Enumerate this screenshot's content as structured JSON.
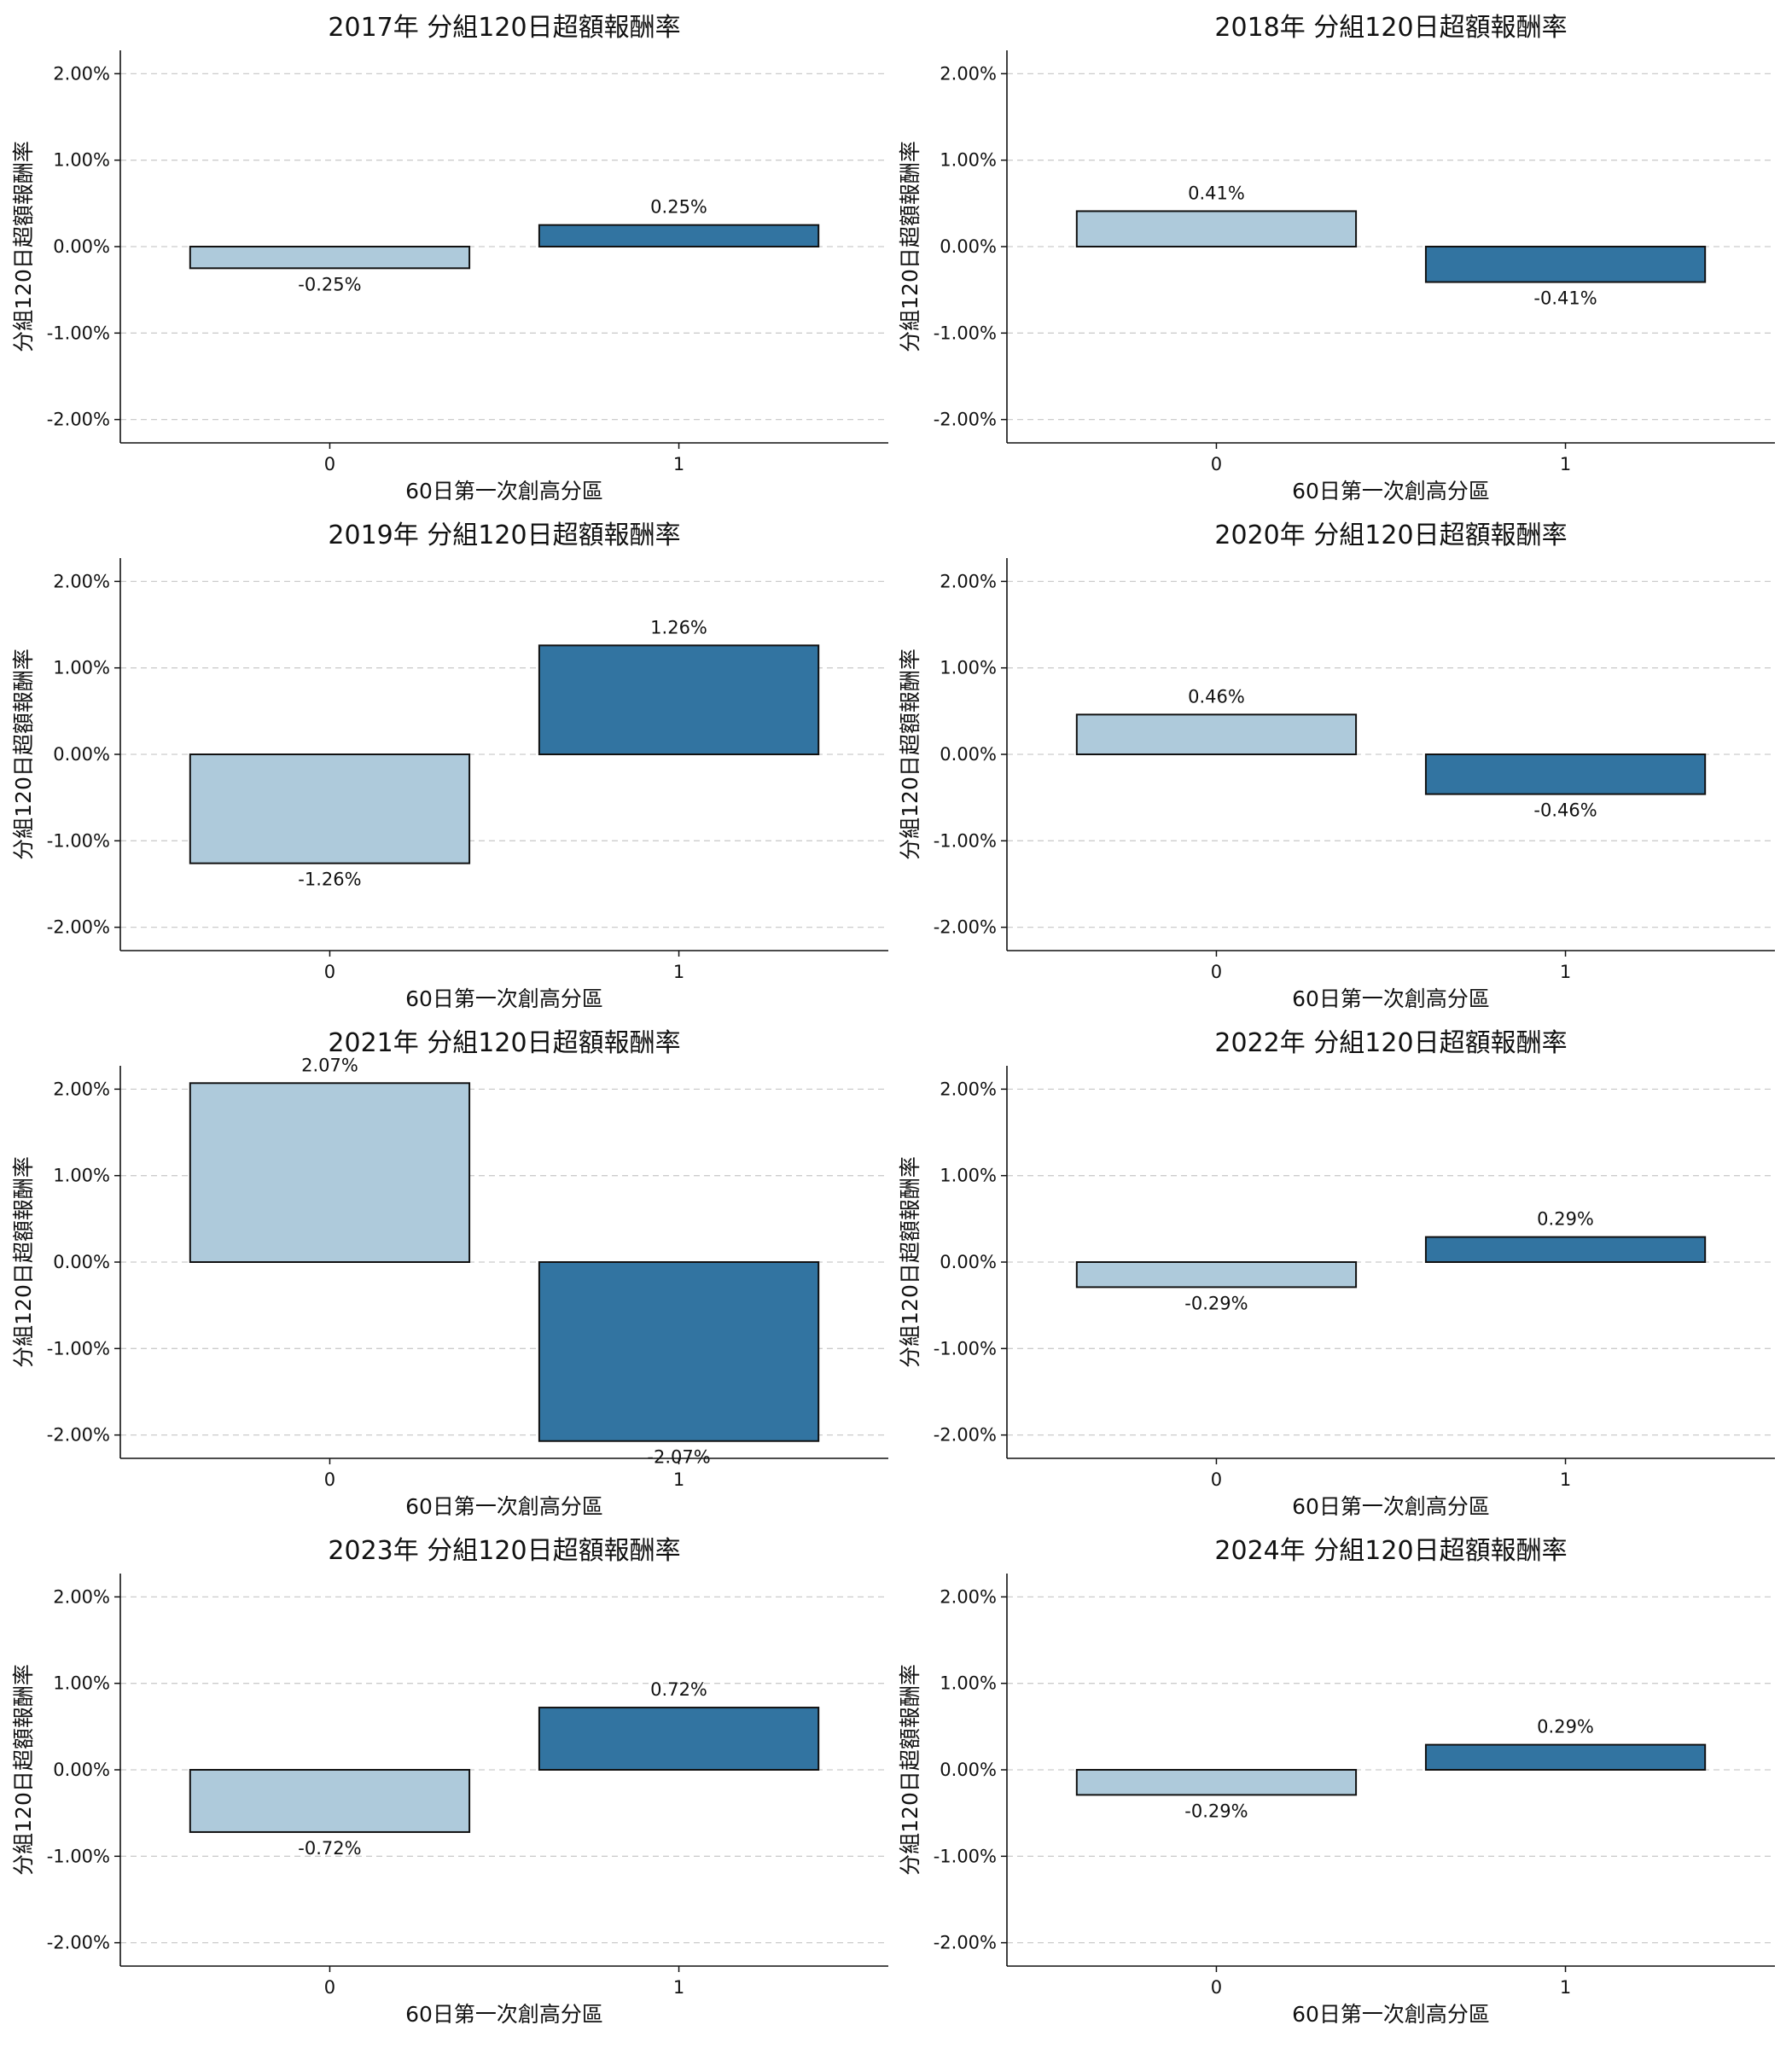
{
  "colors": {
    "group0": "#aecadb",
    "group1": "#3274a1",
    "grid": "#cccccc"
  },
  "y_ticks": [
    "-2.00%",
    "-1.00%",
    "0.00%",
    "1.00%",
    "2.00%"
  ],
  "chart_data": [
    {
      "type": "bar",
      "title": "2017年 分組120日超額報酬率",
      "xlabel": "60日第一次創高分區",
      "ylabel": "分組120日超額報酬率",
      "categories": [
        "0",
        "1"
      ],
      "values": [
        -0.25,
        0.25
      ],
      "labels": [
        "-0.25%",
        "0.25%"
      ],
      "ylim": [
        -2.27,
        2.27
      ],
      "grid": true
    },
    {
      "type": "bar",
      "title": "2018年 分組120日超額報酬率",
      "xlabel": "60日第一次創高分區",
      "ylabel": "分組120日超額報酬率",
      "categories": [
        "0",
        "1"
      ],
      "values": [
        0.41,
        -0.41
      ],
      "labels": [
        "0.41%",
        "-0.41%"
      ],
      "ylim": [
        -2.27,
        2.27
      ],
      "grid": true
    },
    {
      "type": "bar",
      "title": "2019年 分組120日超額報酬率",
      "xlabel": "60日第一次創高分區",
      "ylabel": "分組120日超額報酬率",
      "categories": [
        "0",
        "1"
      ],
      "values": [
        -1.26,
        1.26
      ],
      "labels": [
        "-1.26%",
        "1.26%"
      ],
      "ylim": [
        -2.27,
        2.27
      ],
      "grid": true
    },
    {
      "type": "bar",
      "title": "2020年 分組120日超額報酬率",
      "xlabel": "60日第一次創高分區",
      "ylabel": "分組120日超額報酬率",
      "categories": [
        "0",
        "1"
      ],
      "values": [
        0.46,
        -0.46
      ],
      "labels": [
        "0.46%",
        "-0.46%"
      ],
      "ylim": [
        -2.27,
        2.27
      ],
      "grid": true
    },
    {
      "type": "bar",
      "title": "2021年 分組120日超額報酬率",
      "xlabel": "60日第一次創高分區",
      "ylabel": "分組120日超額報酬率",
      "categories": [
        "0",
        "1"
      ],
      "values": [
        2.07,
        -2.07
      ],
      "labels": [
        "2.07%",
        "-2.07%"
      ],
      "ylim": [
        -2.27,
        2.27
      ],
      "grid": true
    },
    {
      "type": "bar",
      "title": "2022年 分組120日超額報酬率",
      "xlabel": "60日第一次創高分區",
      "ylabel": "分組120日超額報酬率",
      "categories": [
        "0",
        "1"
      ],
      "values": [
        -0.29,
        0.29
      ],
      "labels": [
        "-0.29%",
        "0.29%"
      ],
      "ylim": [
        -2.27,
        2.27
      ],
      "grid": true
    },
    {
      "type": "bar",
      "title": "2023年 分組120日超額報酬率",
      "xlabel": "60日第一次創高分區",
      "ylabel": "分組120日超額報酬率",
      "categories": [
        "0",
        "1"
      ],
      "values": [
        -0.72,
        0.72
      ],
      "labels": [
        "-0.72%",
        "0.72%"
      ],
      "ylim": [
        -2.27,
        2.27
      ],
      "grid": true
    },
    {
      "type": "bar",
      "title": "2024年 分組120日超額報酬率",
      "xlabel": "60日第一次創高分區",
      "ylabel": "分組120日超額報酬率",
      "categories": [
        "0",
        "1"
      ],
      "values": [
        -0.29,
        0.29
      ],
      "labels": [
        "-0.29%",
        "0.29%"
      ],
      "ylim": [
        -2.27,
        2.27
      ],
      "grid": true
    }
  ]
}
